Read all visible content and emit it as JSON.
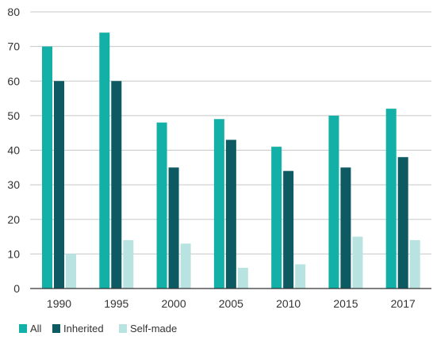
{
  "chart_data": {
    "type": "bar",
    "categories": [
      "1990",
      "1995",
      "2000",
      "2005",
      "2010",
      "2015",
      "2017"
    ],
    "series": [
      {
        "name": "All",
        "values": [
          70,
          74,
          48,
          49,
          41,
          50,
          52
        ],
        "color": "#12b0a6"
      },
      {
        "name": "Inherited",
        "values": [
          60,
          60,
          35,
          43,
          34,
          35,
          38
        ],
        "color": "#0e5a63"
      },
      {
        "name": "Self-made",
        "values": [
          10,
          14,
          13,
          6,
          7,
          15,
          14
        ],
        "color": "#b8e3e0"
      }
    ],
    "title": "",
    "xlabel": "",
    "ylabel": "",
    "ylim": [
      0,
      80
    ],
    "yticks": [
      0,
      10,
      20,
      30,
      40,
      50,
      60,
      70,
      80
    ],
    "grid": true,
    "legend_position": "bottom-left"
  },
  "colors": {
    "grid": "#c8c8c8",
    "axis": "#333333",
    "text": "#333333"
  }
}
